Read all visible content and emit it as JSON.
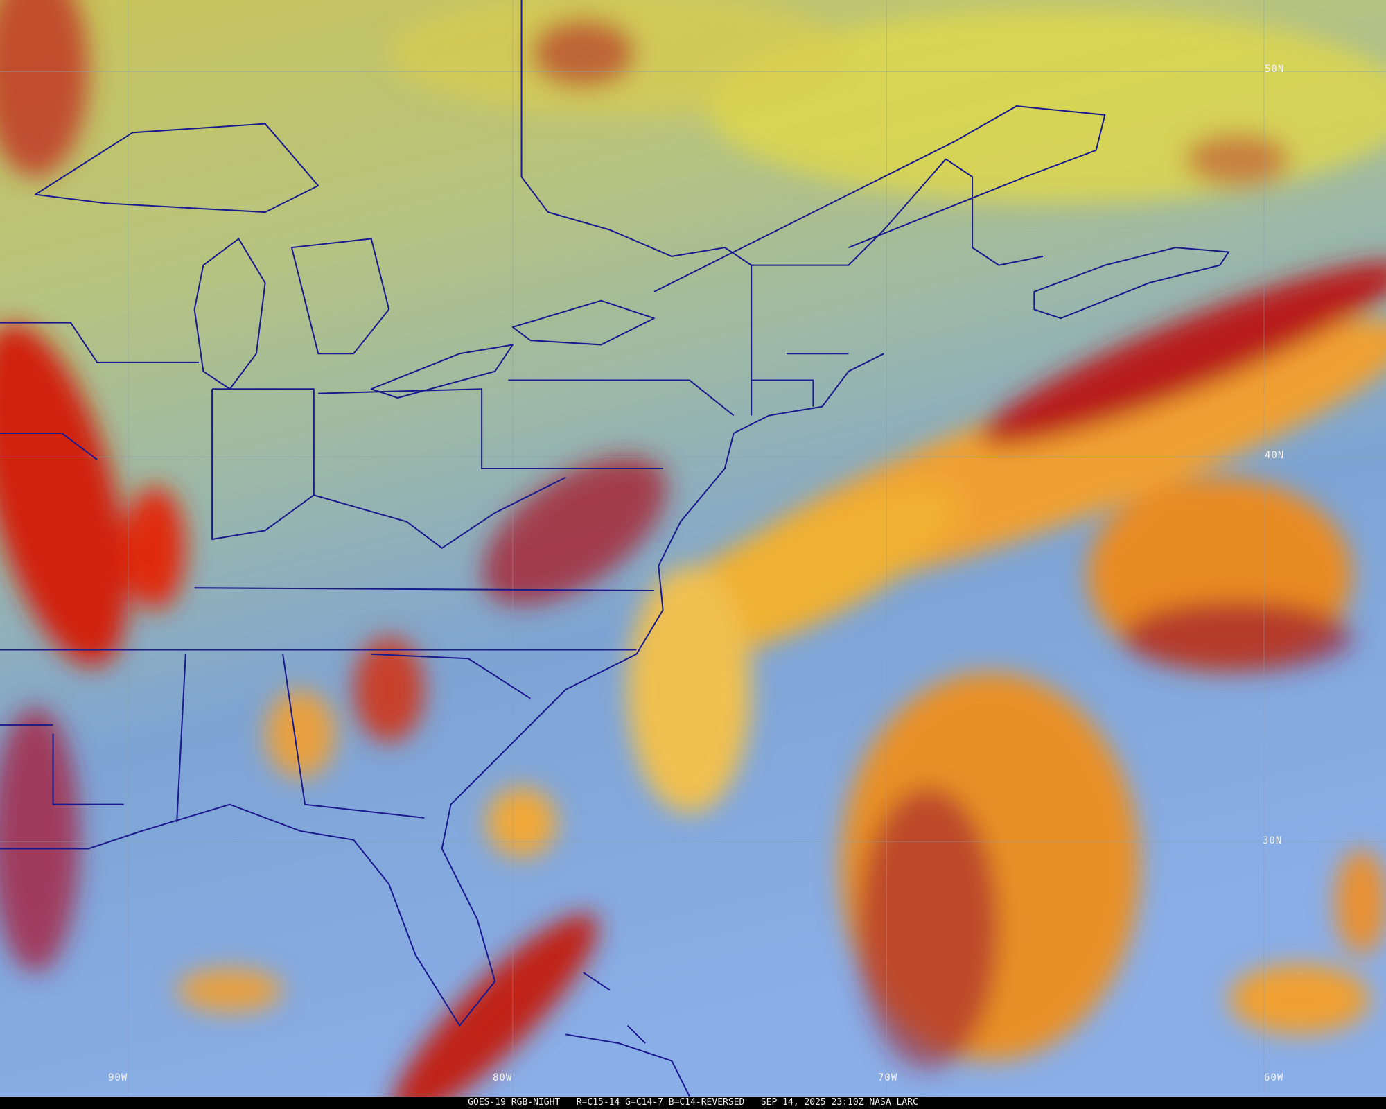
{
  "image": {
    "satellite_caption": "GOES-19 RGB-NIGHT   R=C15-14 G=C14-7 B=C14-REVERSED   SEP 14, 2025 23:10Z NASA LARC",
    "product": "GOES-19 RGB-NIGHT",
    "channels": "R=C15-14 G=C14-7 B=C14-REVERSED",
    "timestamp": "SEP 14, 2025 23:10Z",
    "source": "NASA LARC"
  },
  "grid_labels": {
    "lat": [
      "50N",
      "40N",
      "30N"
    ],
    "lon": [
      "90W",
      "80W",
      "70W",
      "60W"
    ]
  },
  "colors": {
    "boundaries": "#1a1a8c",
    "clear_north": "#c8c860",
    "clear_south": "#7aa0e0",
    "high_cloud": "#f0a030",
    "cloud_edge": "#c01818"
  }
}
